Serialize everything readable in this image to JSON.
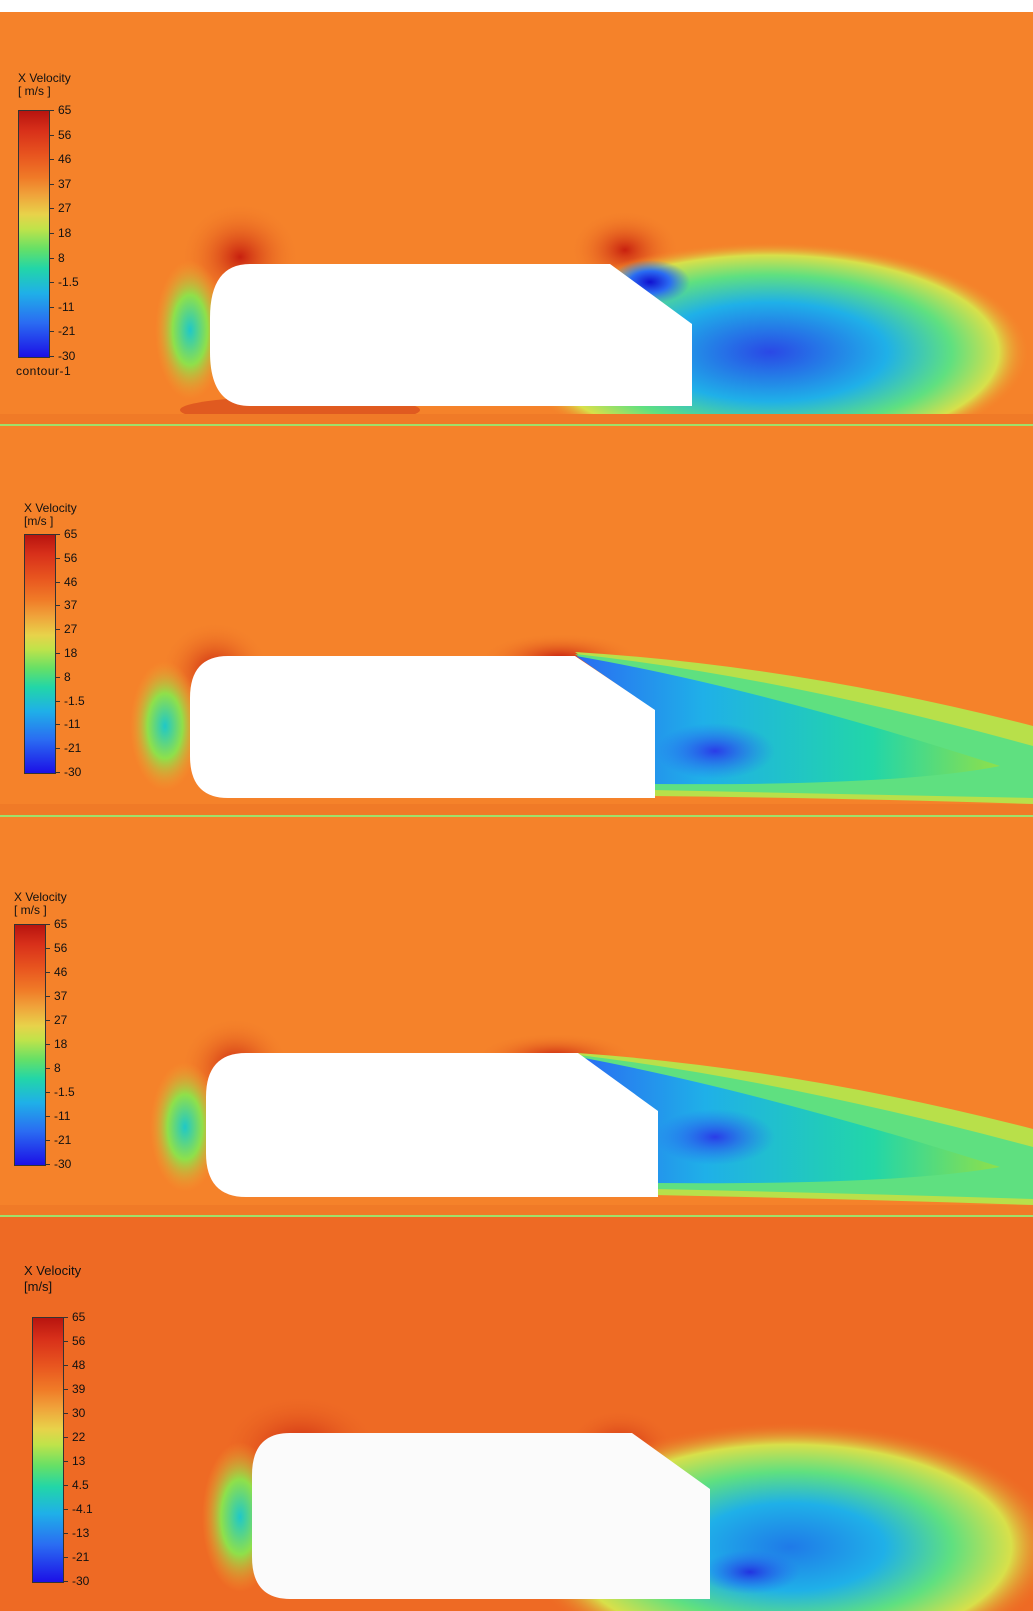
{
  "legend_title": "X Velocity\n[ m/s ]",
  "legend_title_alt": "X Velocity\n[m/s ]",
  "legend_title_alt2": "X Velocity\n[m/s]",
  "panels": [
    {
      "caption": "contour-1",
      "ticks": [
        "65",
        "56",
        "46",
        "37",
        "27",
        "18",
        "8",
        "-1.5",
        "-11",
        "-21",
        "-30"
      ]
    },
    {
      "caption": "",
      "ticks": [
        "65",
        "56",
        "46",
        "37",
        "27",
        "18",
        "8",
        "-1.5",
        "-11",
        "-21",
        "-30"
      ]
    },
    {
      "caption": "",
      "ticks": [
        "65",
        "56",
        "46",
        "37",
        "27",
        "18",
        "8",
        "-1.5",
        "-11",
        "-21",
        "-30"
      ]
    },
    {
      "caption": "",
      "ticks": [
        "65",
        "56",
        "48",
        "39",
        "30",
        "22",
        "13",
        "4.5",
        "-4.1",
        "-13",
        "-21",
        "-30"
      ]
    }
  ],
  "colors": {
    "freestream": "#f5822a",
    "accelerated": "#d9361a",
    "wake": "#2f6fe8",
    "wake_core": "#1c28e0",
    "shear_green": "#8fe04a",
    "body": "#ffffff"
  }
}
